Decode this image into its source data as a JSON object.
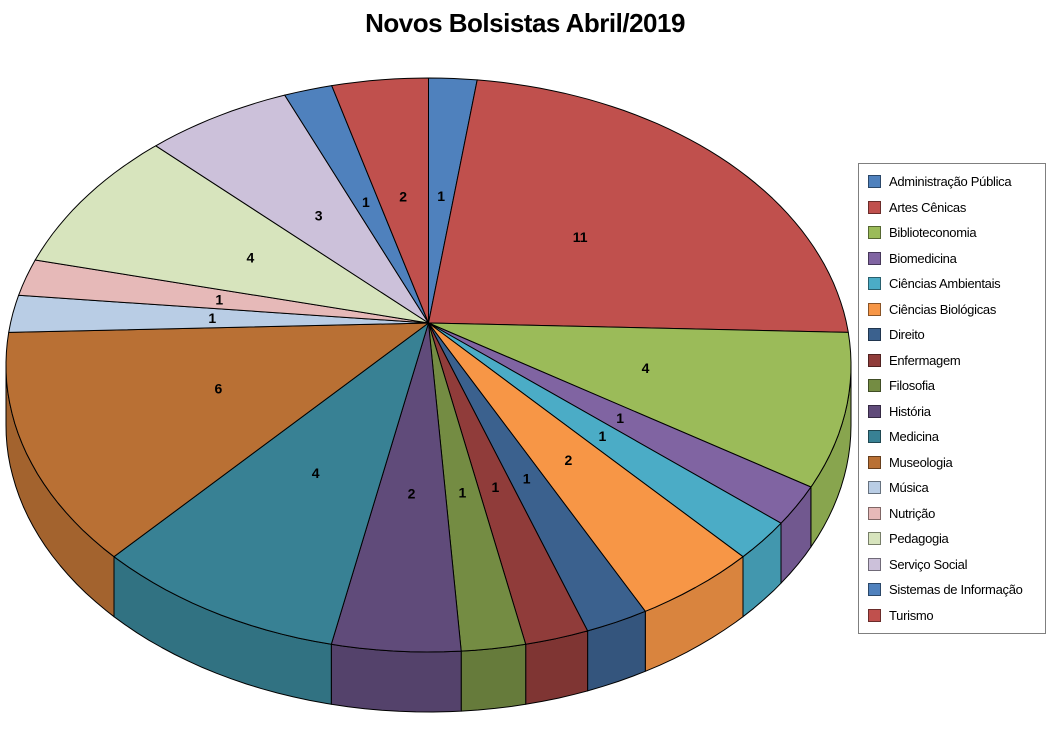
{
  "chart_data": {
    "type": "pie",
    "projection": "3d",
    "title": "Novos Bolsistas Abril/2019",
    "legend_position": "right",
    "data_labels": "values",
    "start_angle_deg": 0,
    "direction": "clockwise",
    "total": 47,
    "categories": [
      "Administração Pública",
      "Artes Cênicas",
      "Biblioteconomia",
      "Biomedicina",
      "Ciências Ambientais",
      "Ciências Biológicas",
      "Direito",
      "Enfermagem",
      "Filosofia",
      "História",
      "Medicina",
      "Museologia",
      "Música",
      "Nutrição",
      "Pedagogia",
      "Serviço Social",
      "Sistemas de Informação",
      "Turismo"
    ],
    "values": [
      1,
      11,
      4,
      1,
      1,
      2,
      1,
      1,
      1,
      2,
      4,
      6,
      1,
      1,
      4,
      3,
      1,
      2
    ],
    "colors": [
      "#4F81BD",
      "#C0504D",
      "#9BBB59",
      "#8064A2",
      "#4BACC6",
      "#F79646",
      "#3B618E",
      "#903C3A",
      "#748C43",
      "#604B7A",
      "#388194",
      "#B97034",
      "#B9CDE5",
      "#E6B9B8",
      "#D7E4BD",
      "#CCC1DA",
      "#4F81BD",
      "#C0504D"
    ]
  },
  "style": {
    "background": "#FFFFFF",
    "title_color": "#000000",
    "slice_outline": "#000000",
    "slice_label_color": "#000000",
    "legend_border": "#7F7F7F",
    "legend_text_color": "#000000"
  }
}
